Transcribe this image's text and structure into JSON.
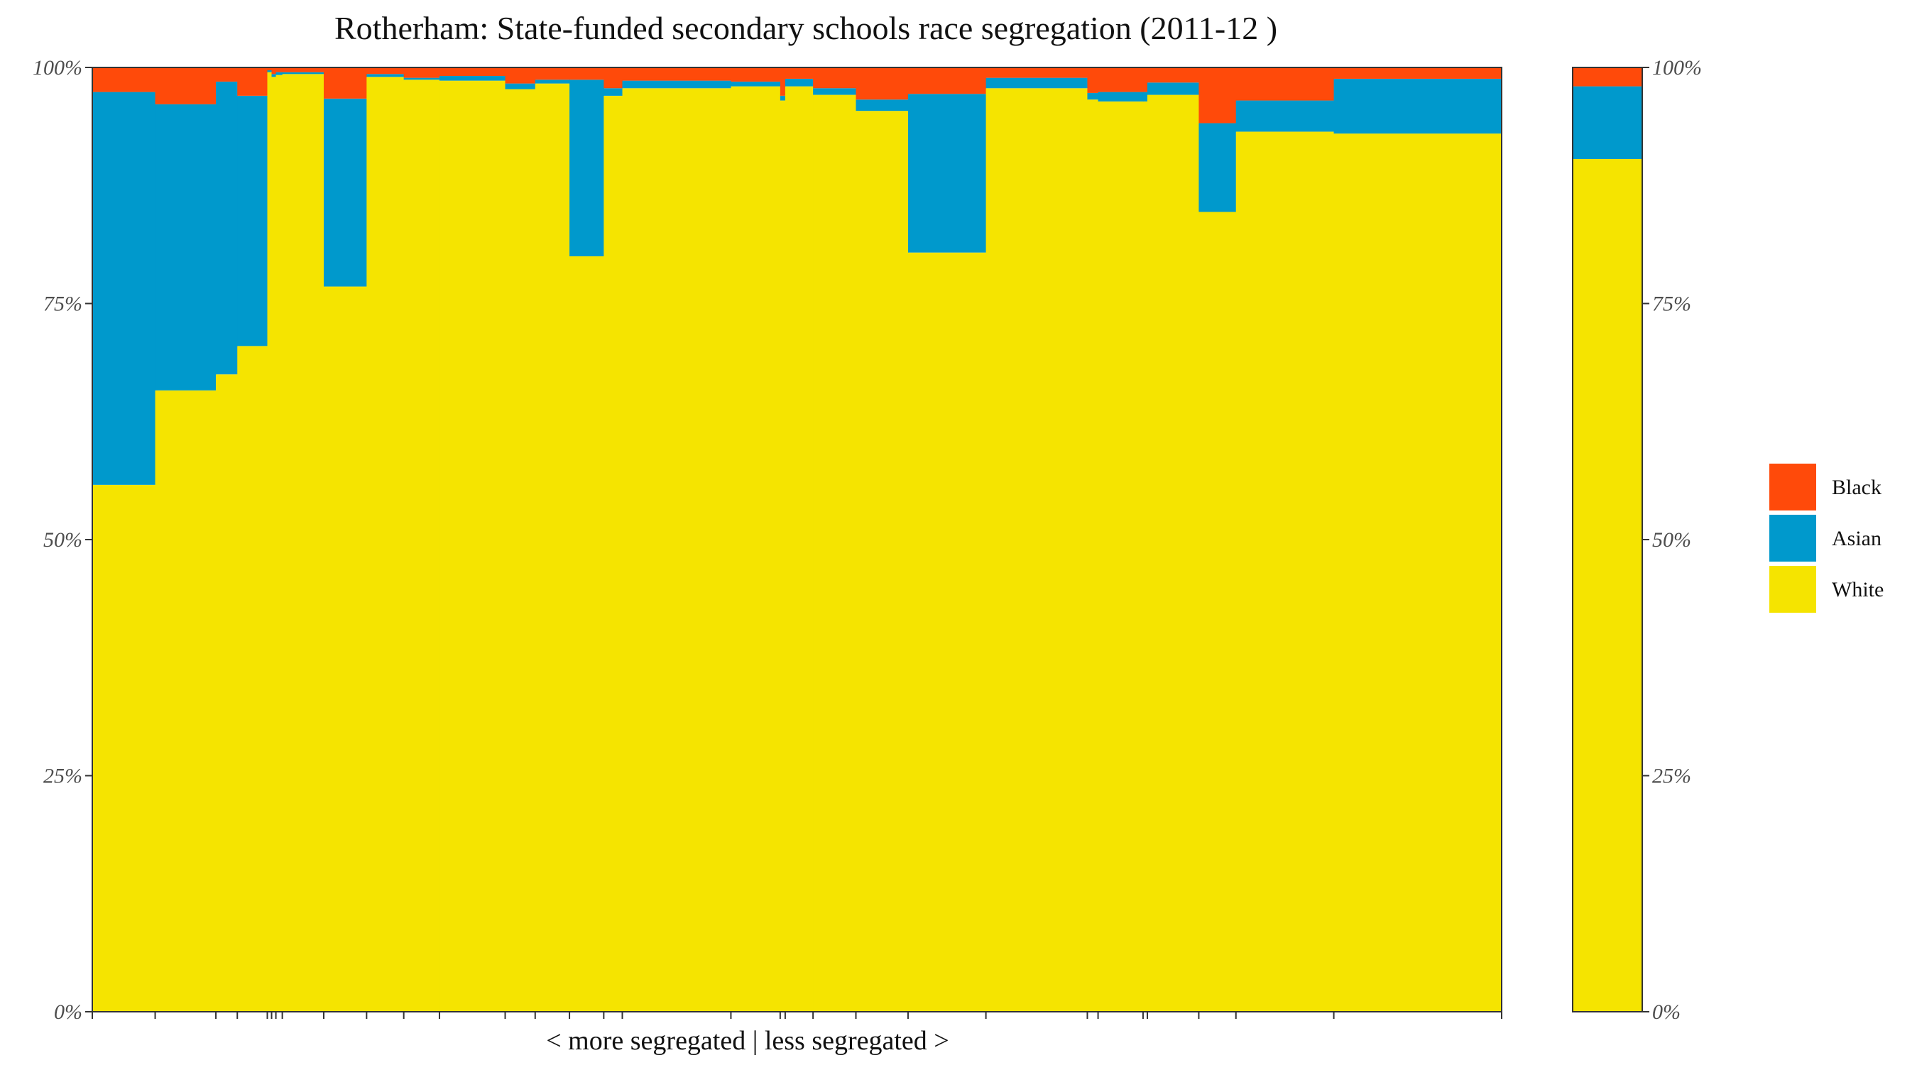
{
  "chart_data": {
    "type": "marimekko",
    "title": "Rotherham: State-funded secondary schools race segregation (2011-12 )",
    "xlabel": "< more segregated | less segregated >",
    "ylabel": "",
    "ylim": [
      0,
      100
    ],
    "y_ticks": [
      "0%",
      "25%",
      "50%",
      "75%",
      "100%"
    ],
    "grid": false,
    "legend_position": "right",
    "colors": {
      "Black": "#ff4a0a",
      "Asian": "#0099cc",
      "White": "#f5e400"
    },
    "legend": [
      {
        "name": "Black",
        "color": "#ff4a0a"
      },
      {
        "name": "Asian",
        "color": "#0099cc"
      },
      {
        "name": "White",
        "color": "#f5e400"
      }
    ],
    "stack_order": [
      "White",
      "Asian",
      "Black"
    ],
    "x_units": "relative school size (bar width)",
    "schools": [
      {
        "width": 8.8,
        "White": 55.8,
        "Asian": 41.6,
        "Black": 2.6
      },
      {
        "width": 8.5,
        "White": 65.8,
        "Asian": 30.3,
        "Black": 3.9
      },
      {
        "width": 3.0,
        "White": 67.5,
        "Asian": 31.0,
        "Black": 1.5
      },
      {
        "width": 4.2,
        "White": 70.5,
        "Asian": 26.5,
        "Black": 3.0
      },
      {
        "width": 0.6,
        "White": 99.5,
        "Asian": 0.2,
        "Black": 0.3
      },
      {
        "width": 0.6,
        "White": 99.0,
        "Asian": 0.3,
        "Black": 0.7
      },
      {
        "width": 0.9,
        "White": 99.2,
        "Asian": 0.3,
        "Black": 0.5
      },
      {
        "width": 5.8,
        "White": 99.3,
        "Asian": 0.2,
        "Black": 0.5
      },
      {
        "width": 6.0,
        "White": 76.8,
        "Asian": 19.9,
        "Black": 3.3
      },
      {
        "width": 5.2,
        "White": 99.0,
        "Asian": 0.3,
        "Black": 0.7
      },
      {
        "width": 5.0,
        "White": 98.7,
        "Asian": 0.2,
        "Black": 1.1
      },
      {
        "width": 9.2,
        "White": 98.6,
        "Asian": 0.5,
        "Black": 0.9
      },
      {
        "width": 4.2,
        "White": 97.7,
        "Asian": 0.6,
        "Black": 1.7
      },
      {
        "width": 4.8,
        "White": 98.3,
        "Asian": 0.4,
        "Black": 1.3
      },
      {
        "width": 4.8,
        "White": 80.0,
        "Asian": 18.7,
        "Black": 1.3
      },
      {
        "width": 2.6,
        "White": 97.0,
        "Asian": 0.8,
        "Black": 2.2
      },
      {
        "width": 15.2,
        "White": 97.8,
        "Asian": 0.8,
        "Black": 1.4
      },
      {
        "width": 6.9,
        "White": 98.0,
        "Asian": 0.5,
        "Black": 1.5
      },
      {
        "width": 0.7,
        "White": 96.5,
        "Asian": 0.5,
        "Black": 3.0
      },
      {
        "width": 3.9,
        "White": 98.0,
        "Asian": 0.8,
        "Black": 1.2
      },
      {
        "width": 6.0,
        "White": 97.1,
        "Asian": 0.7,
        "Black": 2.2
      },
      {
        "width": 7.3,
        "White": 95.4,
        "Asian": 1.2,
        "Black": 3.4
      },
      {
        "width": 10.9,
        "White": 80.4,
        "Asian": 16.8,
        "Black": 2.8
      },
      {
        "width": 14.2,
        "White": 97.8,
        "Asian": 1.1,
        "Black": 1.1
      },
      {
        "width": 1.5,
        "White": 96.6,
        "Asian": 0.7,
        "Black": 2.7
      },
      {
        "width": 6.3,
        "White": 96.4,
        "Asian": 1.0,
        "Black": 2.6
      },
      {
        "width": 0.6,
        "White": 96.4,
        "Asian": 1.0,
        "Black": 2.6
      },
      {
        "width": 7.2,
        "White": 97.1,
        "Asian": 1.3,
        "Black": 1.6
      },
      {
        "width": 5.2,
        "White": 84.7,
        "Asian": 9.4,
        "Black": 5.9
      },
      {
        "width": 13.7,
        "White": 93.2,
        "Asian": 3.3,
        "Black": 3.5
      },
      {
        "width": 23.5,
        "White": 93.0,
        "Asian": 5.8,
        "Black": 1.2
      }
    ],
    "overall": {
      "White": 90.3,
      "Asian": 7.7,
      "Black": 2.0
    }
  }
}
